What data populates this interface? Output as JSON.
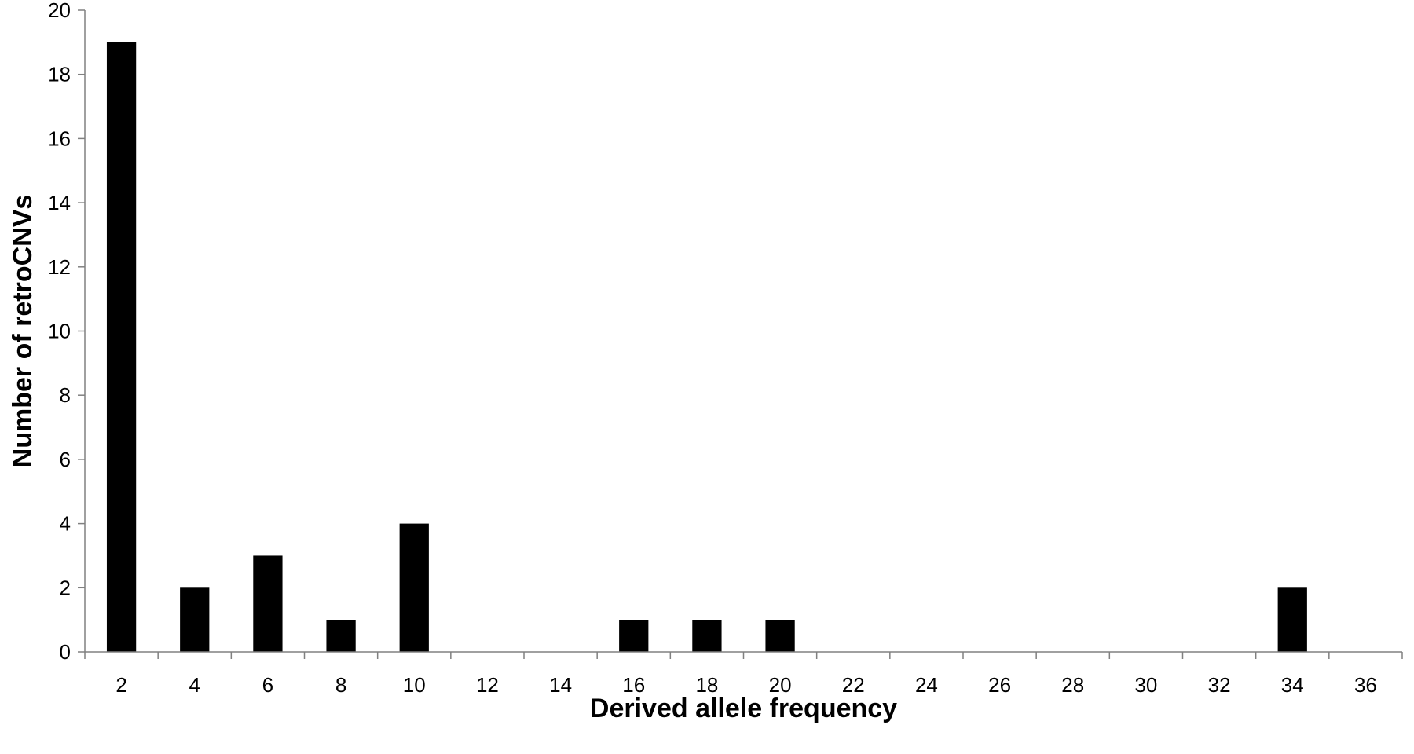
{
  "chart_data": {
    "type": "bar",
    "title": "",
    "xlabel": "Derived allele frequency",
    "ylabel": "Number of retroCNVs",
    "categories": [
      "2",
      "4",
      "6",
      "8",
      "10",
      "12",
      "14",
      "16",
      "18",
      "20",
      "22",
      "24",
      "26",
      "28",
      "30",
      "32",
      "34",
      "36"
    ],
    "values": [
      19,
      2,
      3,
      1,
      4,
      0,
      0,
      1,
      1,
      1,
      0,
      0,
      0,
      0,
      0,
      0,
      2,
      0
    ],
    "ylim": [
      0,
      20
    ],
    "yticks": [
      0,
      2,
      4,
      6,
      8,
      10,
      12,
      14,
      16,
      18,
      20
    ],
    "grid": false,
    "legend": "none",
    "bar_color": "#000000"
  }
}
